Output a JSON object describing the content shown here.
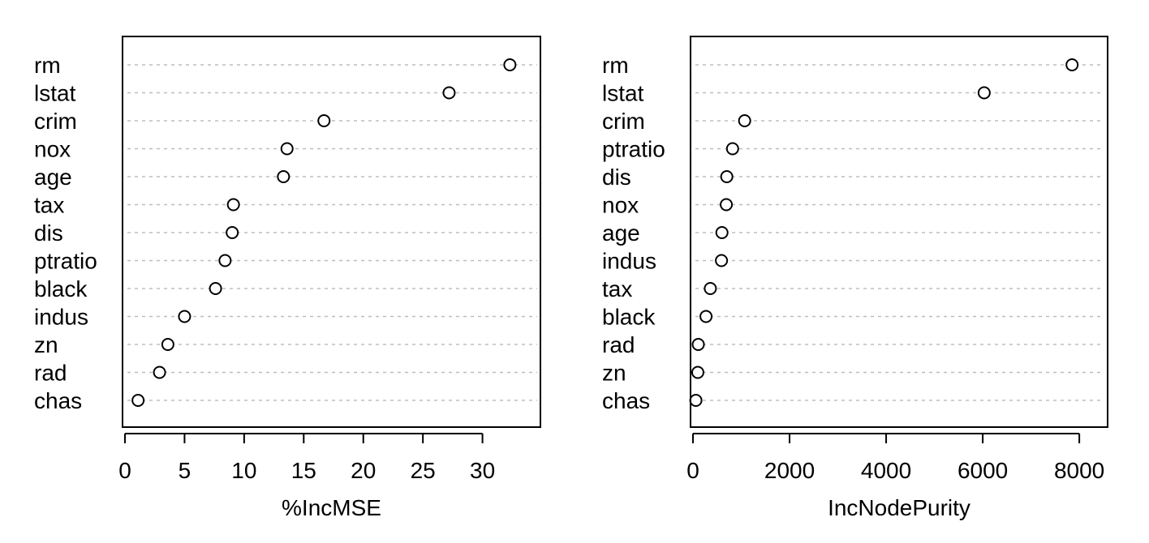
{
  "chart_data": [
    {
      "type": "scatter",
      "xlabel": "%IncMSE",
      "xlim": [
        0,
        33.5
      ],
      "ticks": [
        0,
        5,
        10,
        15,
        20,
        25,
        30
      ],
      "grid": "dotted-horizontal",
      "categories": [
        "rm",
        "lstat",
        "crim",
        "nox",
        "age",
        "tax",
        "dis",
        "ptratio",
        "black",
        "indus",
        "zn",
        "rad",
        "chas"
      ],
      "values": [
        32.3,
        27.2,
        16.7,
        13.6,
        13.3,
        9.1,
        9.0,
        8.4,
        7.6,
        5.0,
        3.6,
        2.9,
        1.1
      ]
    },
    {
      "type": "scatter",
      "xlabel": "IncNodePurity",
      "xlim": [
        0,
        8250
      ],
      "ticks": [
        0,
        2000,
        4000,
        6000,
        8000
      ],
      "grid": "dotted-horizontal",
      "categories": [
        "rm",
        "lstat",
        "crim",
        "ptratio",
        "dis",
        "nox",
        "age",
        "indus",
        "tax",
        "black",
        "rad",
        "zn",
        "chas"
      ],
      "values": [
        7850,
        6030,
        1070,
        820,
        700,
        690,
        600,
        590,
        360,
        270,
        110,
        100,
        60
      ]
    }
  ]
}
